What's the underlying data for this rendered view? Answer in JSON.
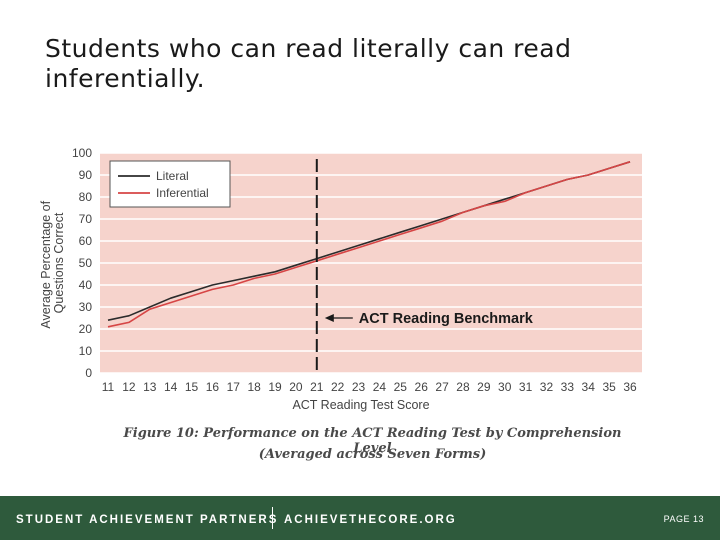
{
  "slide": {
    "title": "Students who can read literally can read inferentially."
  },
  "chart_data": {
    "type": "line",
    "xlabel": "ACT Reading Test Score",
    "ylabel_line1": "Average Percentage of",
    "ylabel_line2": "Questions Correct",
    "x": [
      11,
      12,
      13,
      14,
      15,
      16,
      17,
      18,
      19,
      20,
      21,
      22,
      23,
      24,
      25,
      26,
      27,
      28,
      29,
      30,
      31,
      32,
      33,
      34,
      35,
      36
    ],
    "xlim": [
      11,
      36
    ],
    "ylim": [
      0,
      100
    ],
    "yticks": [
      0,
      10,
      20,
      30,
      40,
      50,
      60,
      70,
      80,
      90,
      100
    ],
    "series": [
      {
        "name": "Literal",
        "color": "#2b2b2b",
        "values": [
          24,
          26,
          30,
          34,
          37,
          40,
          42,
          44,
          46,
          49,
          52,
          55,
          58,
          61,
          64,
          67,
          70,
          73,
          76,
          79,
          82,
          85,
          88,
          90,
          93,
          96
        ]
      },
      {
        "name": "Inferential",
        "color": "#d64545",
        "values": [
          21,
          23,
          29,
          32,
          35,
          38,
          40,
          43,
          45,
          48,
          51,
          54,
          57,
          60,
          63,
          66,
          69,
          73,
          76,
          78,
          82,
          85,
          88,
          90,
          93,
          96
        ]
      }
    ],
    "benchmark": {
      "x": 21,
      "label": "ACT Reading Benchmark"
    },
    "legend_position": "top-left",
    "grid": true,
    "plot_bg": "#f6d3cc",
    "caption_line1": "Figure 10: Performance on the ACT Reading Test by Comprehension Level",
    "caption_line2": "(Averaged across Seven Forms)"
  },
  "footer": {
    "org": "STUDENT ACHIEVEMENT PARTNERS",
    "site": "ACHIEVETHECORE.ORG",
    "page": "PAGE 13",
    "bg_color": "#2e5a3c"
  }
}
